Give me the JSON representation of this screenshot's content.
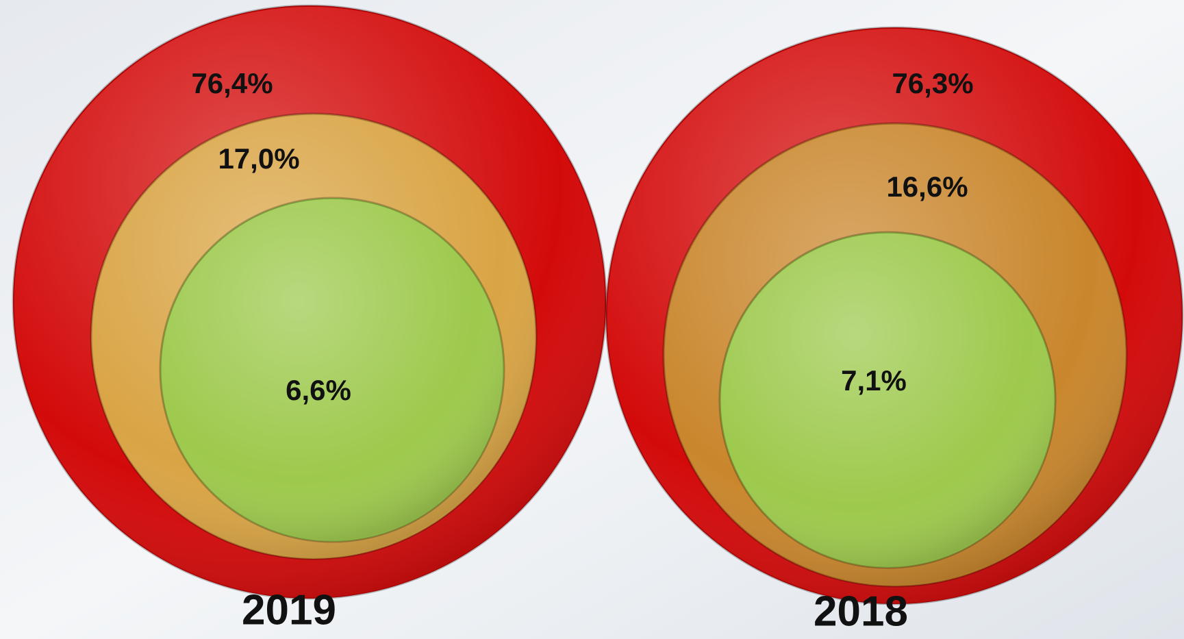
{
  "chart_data": [
    {
      "type": "nested-circles",
      "title": "2019",
      "values": [
        76.4,
        17.0,
        6.6
      ],
      "value_labels": [
        "76,4%",
        "17,0%",
        "6,6%"
      ],
      "colors": [
        "#d30a0a",
        "#d9a444",
        "#9dc94c"
      ]
    },
    {
      "type": "nested-circles",
      "title": "2018",
      "values": [
        76.3,
        16.6,
        7.1
      ],
      "value_labels": [
        "76,3%",
        "16,6%",
        "7,1%"
      ],
      "colors": [
        "#d30a0a",
        "#c9862c",
        "#9dc94c"
      ]
    }
  ]
}
